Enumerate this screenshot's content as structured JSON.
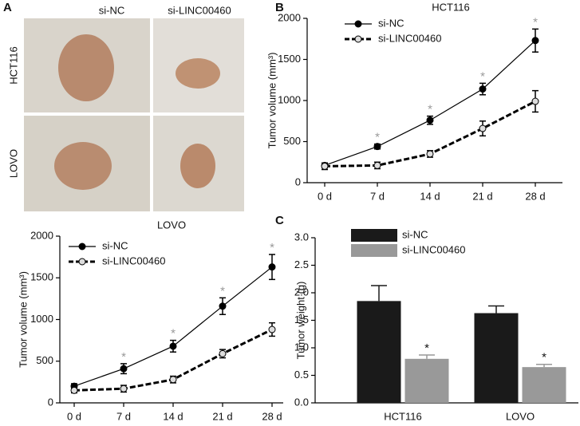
{
  "panels": [
    "A",
    "B",
    "C"
  ],
  "photo_panel": {
    "columns": [
      "si-NC",
      "si-LINC00460"
    ],
    "rows": [
      "HCT116",
      "LOVO"
    ]
  },
  "chart_data": [
    {
      "type": "line",
      "title": "HCT116",
      "y_label": "Tumor volume (mm³)",
      "categories": [
        "0 d",
        "7 d",
        "14 d",
        "21 d",
        "28 d"
      ],
      "ylim": [
        0,
        2000
      ],
      "yticks": [
        0,
        500,
        1000,
        1500,
        2000
      ],
      "series": [
        {
          "name": "si-NC",
          "color": "#000000",
          "line_style": "solid",
          "values": [
            210,
            440,
            760,
            1140,
            1730
          ],
          "errors": [
            30,
            30,
            50,
            70,
            140
          ],
          "significance": [
            null,
            "*",
            "*",
            "*",
            "*"
          ]
        },
        {
          "name": "si-LINC00460",
          "color": "#000000",
          "line_style": "dashed",
          "values": [
            200,
            210,
            350,
            660,
            990
          ],
          "errors": [
            40,
            40,
            40,
            90,
            130
          ]
        }
      ]
    },
    {
      "type": "line",
      "title": "LOVO",
      "y_label": "Tumor volume (mm³)",
      "categories": [
        "0 d",
        "7 d",
        "14 d",
        "21 d",
        "28 d"
      ],
      "ylim": [
        0,
        2000
      ],
      "yticks": [
        0,
        500,
        1000,
        1500,
        2000
      ],
      "series": [
        {
          "name": "si-NC",
          "color": "#000000",
          "line_style": "solid",
          "values": [
            200,
            410,
            680,
            1160,
            1630
          ],
          "errors": [
            30,
            60,
            70,
            100,
            150
          ],
          "significance": [
            null,
            "*",
            "*",
            "*",
            "*"
          ]
        },
        {
          "name": "si-LINC00460",
          "color": "#000000",
          "line_style": "dashed",
          "values": [
            150,
            170,
            280,
            590,
            880
          ],
          "errors": [
            30,
            40,
            40,
            50,
            80
          ]
        }
      ]
    },
    {
      "type": "bar",
      "y_label": "Tumor weight (g)",
      "categories": [
        "HCT116",
        "LOVO"
      ],
      "ylim": [
        0,
        3
      ],
      "yticks": [
        {
          "value": 0,
          "label": "0.0"
        },
        0.5,
        {
          "value": 1,
          "label": "1.0"
        },
        1.5,
        {
          "value": 2,
          "label": "2.0"
        },
        2.5,
        {
          "value": 3,
          "label": "3.0"
        }
      ],
      "series": [
        {
          "name": "si-NC",
          "color": "#1a1a1a",
          "values": [
            1.85,
            1.63
          ],
          "errors": [
            0.28,
            0.13
          ]
        },
        {
          "name": "si-LINC00460",
          "color": "#999999",
          "values": [
            0.8,
            0.65
          ],
          "errors": [
            0.07,
            0.05
          ],
          "significance": [
            "*",
            "*"
          ]
        }
      ]
    }
  ]
}
